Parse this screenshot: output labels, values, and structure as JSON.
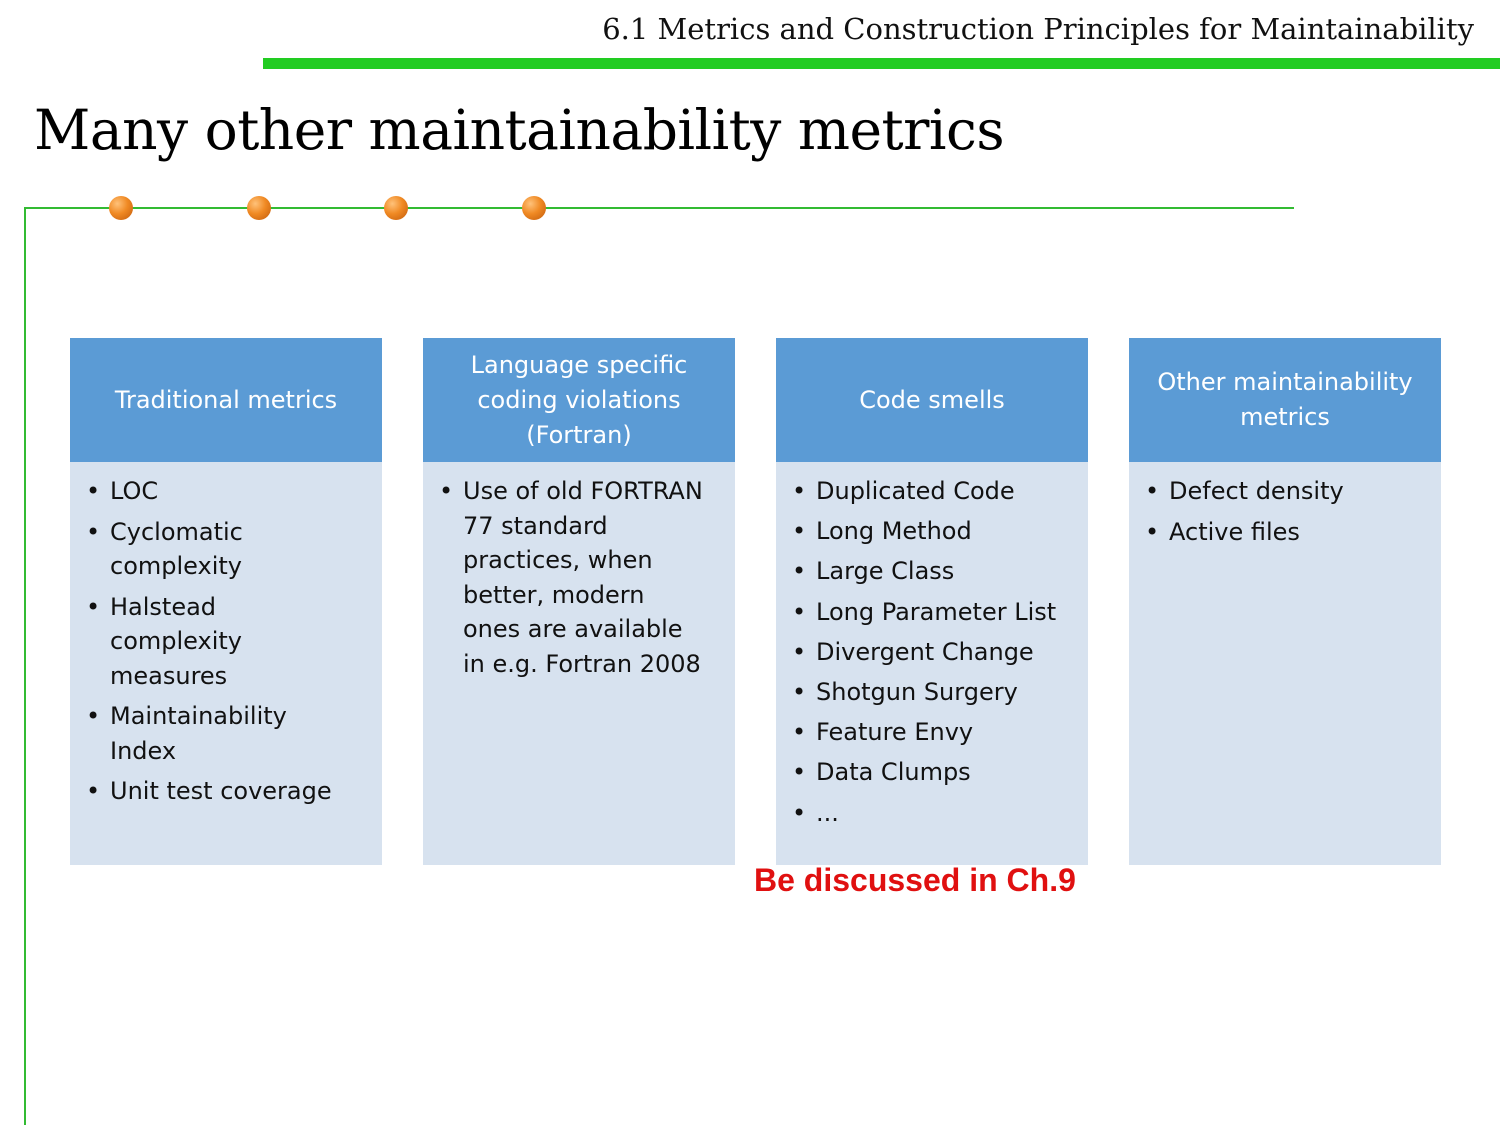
{
  "header": {
    "section_title": "6.1 Metrics and Construction Principles for Maintainability",
    "accent_color": "#22cc22"
  },
  "slide": {
    "title": "Many other maintainability metrics"
  },
  "cards": [
    {
      "heading_lines": [
        "Traditional metrics"
      ],
      "items": [
        "LOC",
        "Cyclomatic complexity",
        "Halstead complexity measures",
        "Maintainability Index",
        "Unit test coverage"
      ]
    },
    {
      "heading_lines": [
        "Language specific",
        "coding violations",
        "(Fortran)"
      ],
      "items": [
        "Use of old FORTRAN 77 standard practices, when better, modern ones are available in e.g. Fortran 2008"
      ]
    },
    {
      "heading_lines": [
        "Code smells"
      ],
      "items": [
        "Duplicated Code",
        "Long Method",
        "Large Class",
        "Long Parameter List",
        "Divergent Change",
        "Shotgun Surgery",
        "Feature Envy",
        "Data Clumps",
        "..."
      ]
    },
    {
      "heading_lines": [
        "Other maintainability",
        "metrics"
      ],
      "items": [
        "Defect density",
        "Active files"
      ]
    }
  ],
  "note": {
    "text": "Be discussed in Ch.9",
    "color": "#e01010"
  },
  "colors": {
    "card_header": "#5b9bd5",
    "card_body": "#d7e2ef",
    "dot": "#f08a24"
  }
}
